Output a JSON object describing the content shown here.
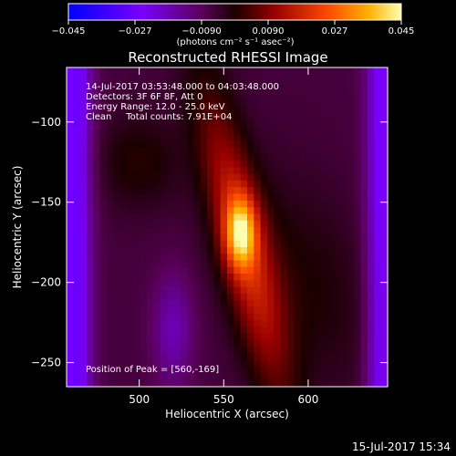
{
  "chart_data": {
    "type": "heatmap",
    "title": "Reconstructed RHESSI Image",
    "xlabel": "Heliocentric X (arcsec)",
    "ylabel": "Heliocentric Y (arcsec)",
    "xlim": [
      457,
      647
    ],
    "ylim": [
      -265,
      -66
    ],
    "xticks": [
      500,
      550,
      600
    ],
    "yticks": [
      -100,
      -150,
      -200,
      -250
    ],
    "colorbar": {
      "range": [
        -0.045,
        0.045
      ],
      "ticks": [
        "-0.045",
        "-0.027",
        "-0.0090",
        "0.0090",
        "0.027",
        "0.045"
      ],
      "label": "(photons cm⁻² s⁻¹ asec⁻²)"
    },
    "annotations": [
      "14-Jul-2017 03:53:48.000 to 04:03:48.000",
      "Detectors: 3F 6F 8F, Att 0",
      "Energy Range: 12.0 - 25.0 keV",
      "Clean     Total counts: 7.91E+04"
    ],
    "peak_label": "Position of Peak = [560,-169]",
    "peak": {
      "x": 560,
      "y": -169,
      "value": 0.045
    },
    "source": {
      "ridge_top": {
        "x": 542,
        "y": -85
      },
      "ridge_bottom": {
        "x": 580,
        "y": -258
      },
      "ridge_width_arcsec": 16
    },
    "background_value": -0.006,
    "grid": false
  },
  "footer": {
    "timestamp": "15-Jul-2017 15:34"
  }
}
